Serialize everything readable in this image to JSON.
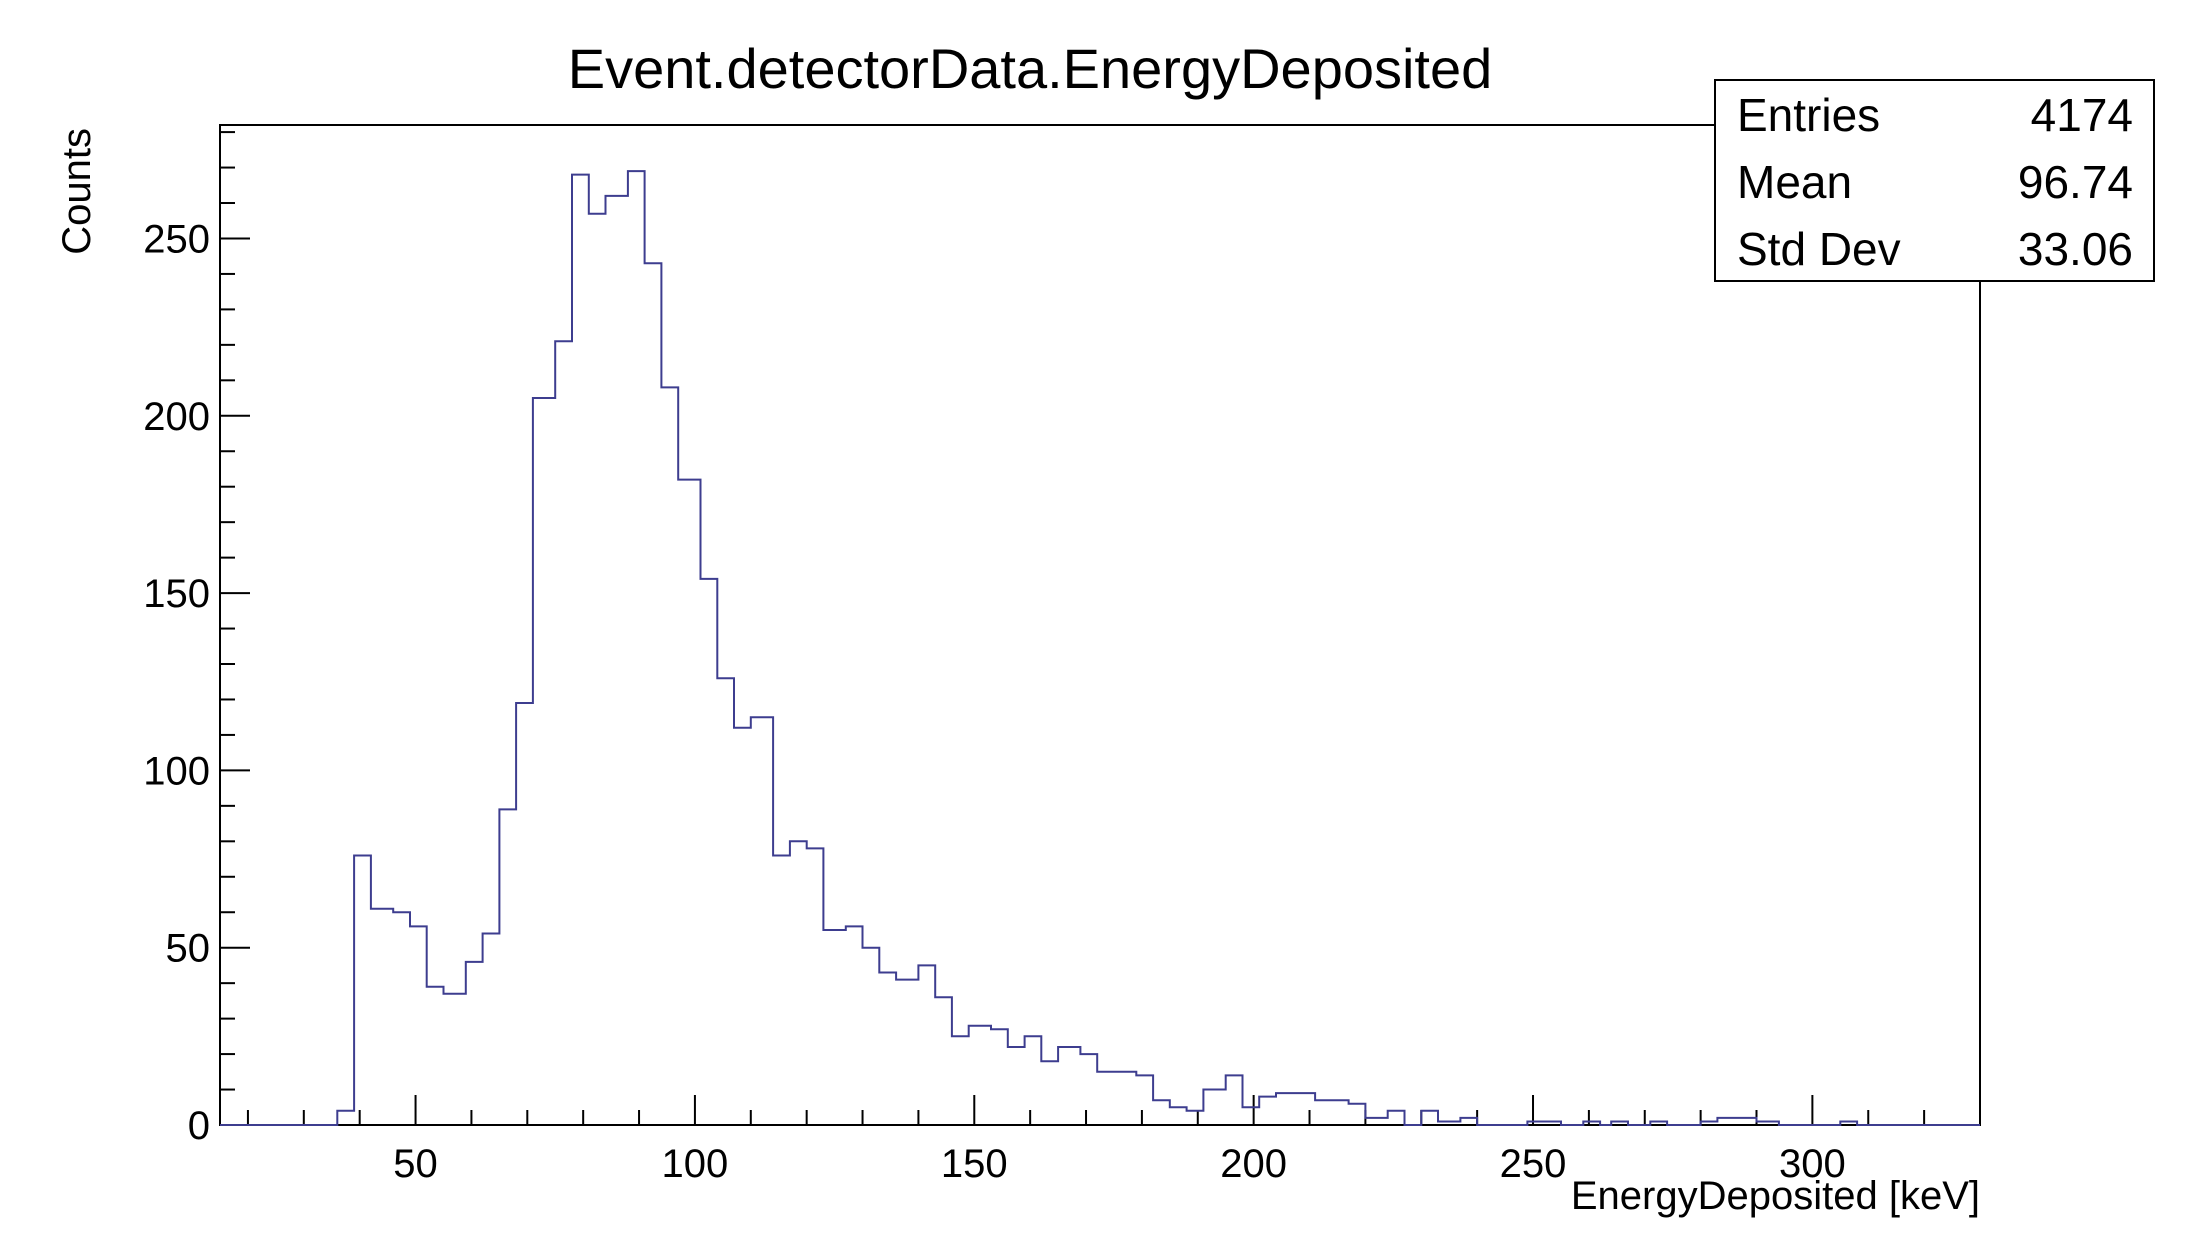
{
  "chart_data": {
    "type": "histogram",
    "title": "Event.detectorData.EnergyDeposited",
    "xlabel": "EnergyDeposited [keV]",
    "ylabel": "Counts",
    "xlim": [
      15,
      330
    ],
    "ylim": [
      0,
      282
    ],
    "x_ticks": [
      50,
      100,
      150,
      200,
      250,
      300
    ],
    "y_ticks": [
      0,
      50,
      100,
      150,
      200,
      250
    ],
    "grid": false,
    "line_color": "#3d3d8f",
    "bins": [
      [
        15,
        0
      ],
      [
        36,
        4
      ],
      [
        39,
        76
      ],
      [
        42,
        61
      ],
      [
        46,
        60
      ],
      [
        49,
        56
      ],
      [
        52,
        39
      ],
      [
        55,
        37
      ],
      [
        59,
        46
      ],
      [
        62,
        54
      ],
      [
        65,
        89
      ],
      [
        68,
        119
      ],
      [
        71,
        205
      ],
      [
        75,
        221
      ],
      [
        78,
        268
      ],
      [
        81,
        257
      ],
      [
        84,
        262
      ],
      [
        88,
        269
      ],
      [
        91,
        243
      ],
      [
        94,
        208
      ],
      [
        97,
        182
      ],
      [
        101,
        154
      ],
      [
        104,
        126
      ],
      [
        107,
        112
      ],
      [
        110,
        115
      ],
      [
        114,
        76
      ],
      [
        117,
        80
      ],
      [
        120,
        78
      ],
      [
        123,
        55
      ],
      [
        127,
        56
      ],
      [
        130,
        50
      ],
      [
        133,
        43
      ],
      [
        136,
        41
      ],
      [
        140,
        45
      ],
      [
        143,
        36
      ],
      [
        146,
        25
      ],
      [
        149,
        28
      ],
      [
        153,
        27
      ],
      [
        156,
        22
      ],
      [
        159,
        25
      ],
      [
        162,
        18
      ],
      [
        165,
        22
      ],
      [
        169,
        20
      ],
      [
        172,
        15
      ],
      [
        175,
        15
      ],
      [
        179,
        14
      ],
      [
        182,
        7
      ],
      [
        185,
        5
      ],
      [
        188,
        4
      ],
      [
        191,
        10
      ],
      [
        195,
        14
      ],
      [
        198,
        5
      ],
      [
        201,
        8
      ],
      [
        204,
        9
      ],
      [
        207,
        9
      ],
      [
        211,
        7
      ],
      [
        214,
        7
      ],
      [
        217,
        6
      ],
      [
        220,
        2
      ],
      [
        224,
        4
      ],
      [
        227,
        0
      ],
      [
        230,
        4
      ],
      [
        233,
        1
      ],
      [
        237,
        2
      ],
      [
        240,
        0
      ],
      [
        249,
        1
      ],
      [
        255,
        0
      ],
      [
        259,
        1
      ],
      [
        262,
        0
      ],
      [
        264,
        1
      ],
      [
        267,
        0
      ],
      [
        271,
        1
      ],
      [
        274,
        0
      ],
      [
        280,
        1
      ],
      [
        283,
        2
      ],
      [
        290,
        1
      ],
      [
        294,
        0
      ],
      [
        305,
        1
      ],
      [
        308,
        0
      ]
    ],
    "bin_end": 330,
    "stats": {
      "entries_label": "Entries",
      "entries": "4174",
      "mean_label": "Mean",
      "mean": "96.74",
      "stddev_label": "Std Dev",
      "stddev": "33.06"
    }
  }
}
